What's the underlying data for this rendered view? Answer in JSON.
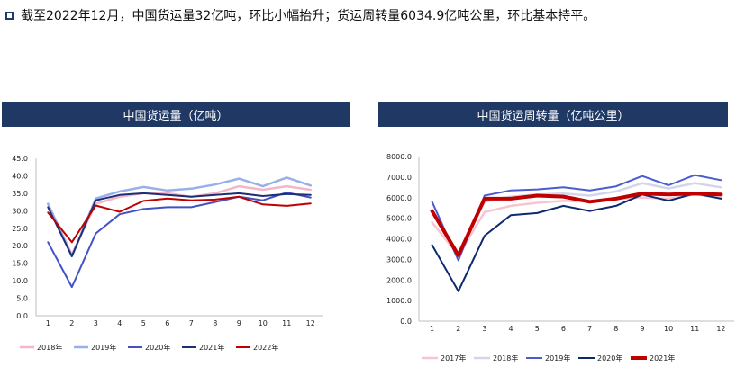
{
  "headline": {
    "icon": "square-bullet-icon",
    "text": "截至2022年12月，中国货运量32亿吨，环比小幅抬升；货运周转量6034.9亿吨公里，环比基本持平。"
  },
  "chart_data": [
    {
      "type": "line",
      "title": "中国货运量（亿吨）",
      "x": [
        1,
        2,
        3,
        4,
        5,
        6,
        7,
        8,
        9,
        10,
        11,
        12
      ],
      "ylim": [
        0,
        45
      ],
      "yticks": [
        "0.0",
        "5.0",
        "10.0",
        "15.0",
        "20.0",
        "25.0",
        "30.0",
        "35.0",
        "40.0",
        "45.0"
      ],
      "grid": false,
      "legend_position": "bottom",
      "series": [
        {
          "name": "2018年",
          "color": "#f4b6c8",
          "width": 2.5,
          "values": [
            32,
            17.5,
            32,
            34,
            35,
            35,
            34,
            35,
            37,
            36,
            37,
            36
          ]
        },
        {
          "name": "2019年",
          "color": "#98b0ea",
          "width": 2.5,
          "values": [
            32,
            17,
            33.5,
            35.5,
            36.8,
            35.8,
            36.3,
            37.5,
            39.2,
            37,
            39.5,
            37.2
          ]
        },
        {
          "name": "2020年",
          "color": "#4252c4",
          "width": 2,
          "values": [
            21,
            8.2,
            23.5,
            29,
            30.5,
            31,
            31,
            32.5,
            34,
            33,
            35.2,
            33.8
          ]
        },
        {
          "name": "2021年",
          "color": "#1c2f73",
          "width": 2,
          "values": [
            31,
            17,
            33,
            34.5,
            35,
            34.5,
            34,
            34.5,
            35,
            34.2,
            34.8,
            34.5
          ]
        },
        {
          "name": "2022年",
          "color": "#c00000",
          "width": 2,
          "values": [
            29.5,
            21,
            31.5,
            29.7,
            32.8,
            33.5,
            33,
            33.2,
            34,
            31.8,
            31.4,
            32.1
          ]
        }
      ]
    },
    {
      "type": "line",
      "title": "中国货运周转量（亿吨公里）",
      "x": [
        1,
        2,
        3,
        4,
        5,
        6,
        7,
        8,
        9,
        10,
        11,
        12
      ],
      "ylim": [
        0,
        8000
      ],
      "yticks": [
        "0.0",
        "1000.0",
        "2000.0",
        "3000.0",
        "4000.0",
        "5000.0",
        "6000.0",
        "7000.0",
        "8000.0"
      ],
      "grid": false,
      "legend_position": "bottom",
      "series": [
        {
          "name": "2017年",
          "color": "#f6c5d2",
          "width": 2.5,
          "values": [
            4800,
            3200,
            5300,
            5600,
            5750,
            5850,
            5800,
            5950,
            6000,
            5950,
            6150,
            6000
          ]
        },
        {
          "name": "2018年",
          "color": "#d4d4ec",
          "width": 2.5,
          "values": [
            5400,
            3300,
            5800,
            6050,
            6150,
            6200,
            6100,
            6300,
            6700,
            6450,
            6700,
            6500
          ]
        },
        {
          "name": "2019年",
          "color": "#4a5cd0",
          "width": 2,
          "values": [
            5800,
            2950,
            6100,
            6350,
            6400,
            6500,
            6350,
            6550,
            7050,
            6600,
            7100,
            6850
          ]
        },
        {
          "name": "2020年",
          "color": "#0d2a6e",
          "width": 2,
          "values": [
            3700,
            1450,
            4150,
            5150,
            5250,
            5600,
            5350,
            5600,
            6150,
            5850,
            6200,
            5950
          ]
        },
        {
          "name": "2021年",
          "color": "#c00000",
          "width": 4,
          "values": [
            5350,
            3200,
            5950,
            5950,
            6100,
            6050,
            5800,
            5950,
            6200,
            6150,
            6200,
            6150
          ]
        }
      ]
    }
  ]
}
